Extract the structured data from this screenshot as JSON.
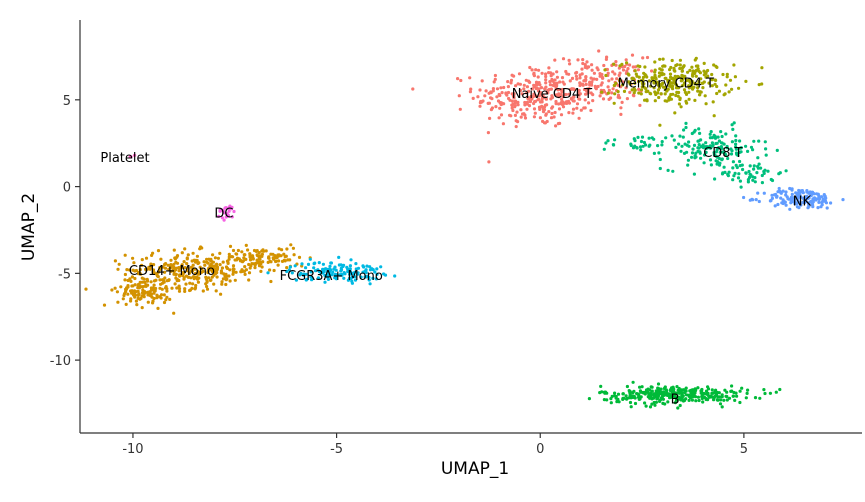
{
  "chart_data": {
    "type": "scatter",
    "xlabel": "UMAP_1",
    "ylabel": "UMAP_2",
    "xlim": [
      -11.3,
      7.9
    ],
    "ylim": [
      -14.2,
      9.6
    ],
    "xticks": [
      -10,
      -5,
      0,
      5
    ],
    "yticks": [
      5,
      0,
      -5,
      -10
    ],
    "xtick_labels": [
      "-10",
      "-5",
      "0",
      "5"
    ],
    "ytick_labels": [
      "5",
      "0",
      "-5",
      "-10"
    ],
    "grid": false,
    "legend": "none",
    "series": [
      {
        "label": "Naive CD4 T",
        "color": "#F8766D",
        "label_x": -0.7,
        "label_y": 5.4,
        "blobs": [
          {
            "cx": -0.1,
            "cy": 5.2,
            "sx": 1.0,
            "sy": 1.2,
            "n": 300
          },
          {
            "cx": 1.5,
            "cy": 6.1,
            "sx": 0.7,
            "sy": 0.9,
            "n": 150
          }
        ]
      },
      {
        "label": "Memory CD4 T",
        "color": "#A3A500",
        "label_x": 1.9,
        "label_y": 6.0,
        "blobs": [
          {
            "cx": 3.3,
            "cy": 6.0,
            "sx": 0.95,
            "sy": 0.85,
            "n": 280
          }
        ]
      },
      {
        "label": "CD8 T",
        "color": "#00BF7D",
        "label_x": 4.0,
        "label_y": 2.0,
        "blobs": [
          {
            "cx": 4.2,
            "cy": 2.2,
            "sx": 0.8,
            "sy": 0.8,
            "n": 150
          },
          {
            "cx": 5.2,
            "cy": 0.8,
            "sx": 0.5,
            "sy": 0.5,
            "n": 50
          },
          {
            "cx": 2.4,
            "cy": 2.5,
            "sx": 0.6,
            "sy": 0.3,
            "n": 30
          }
        ]
      },
      {
        "label": "NK",
        "color": "#619CFF",
        "label_x": 6.2,
        "label_y": -0.8,
        "blobs": [
          {
            "cx": 6.4,
            "cy": -0.7,
            "sx": 0.6,
            "sy": 0.38,
            "n": 150
          }
        ]
      },
      {
        "label": "Platelet",
        "color": "#FF61C3",
        "label_x": -10.8,
        "label_y": 1.7,
        "blobs": [
          {
            "cx": -10.0,
            "cy": 1.75,
            "sx": 0.06,
            "sy": 0.06,
            "n": 3
          }
        ]
      },
      {
        "label": "DC",
        "color": "#F564E3",
        "label_x": -8.0,
        "label_y": -1.5,
        "blobs": [
          {
            "cx": -7.7,
            "cy": -1.5,
            "sx": 0.15,
            "sy": 0.3,
            "n": 25
          }
        ]
      },
      {
        "label": "CD14+ Mono",
        "color": "#D39200",
        "label_x": -10.1,
        "label_y": -4.8,
        "blobs": [
          {
            "cx": -8.5,
            "cy": -4.8,
            "sx": 1.1,
            "sy": 0.7,
            "n": 300
          },
          {
            "cx": -9.7,
            "cy": -6.0,
            "sx": 0.45,
            "sy": 0.6,
            "n": 130
          },
          {
            "cx": -6.8,
            "cy": -4.1,
            "sx": 0.6,
            "sy": 0.4,
            "n": 100
          }
        ]
      },
      {
        "label": "FCGR3A+ Mono",
        "color": "#00B9E3",
        "label_x": -6.4,
        "label_y": -5.1,
        "blobs": [
          {
            "cx": -5.0,
            "cy": -4.9,
            "sx": 0.75,
            "sy": 0.38,
            "n": 140
          }
        ]
      },
      {
        "label": "B",
        "color": "#00BA38",
        "label_x": 3.2,
        "label_y": -12.2,
        "blobs": [
          {
            "cx": 3.3,
            "cy": -12.0,
            "sx": 1.2,
            "sy": 0.35,
            "n": 320
          }
        ]
      }
    ]
  }
}
